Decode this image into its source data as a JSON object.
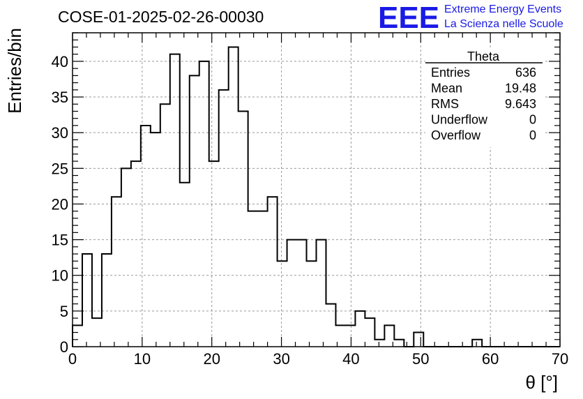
{
  "chart_data": {
    "type": "bar",
    "histogram": true,
    "title": "COSE-01-2025-02-26-00030",
    "xlabel": "θ [°]",
    "ylabel": "Entries/bin",
    "xlim": [
      0,
      70
    ],
    "ylim": [
      0,
      44
    ],
    "x_ticks": [
      0,
      10,
      20,
      30,
      40,
      50,
      60,
      70
    ],
    "y_ticks": [
      0,
      5,
      10,
      15,
      20,
      25,
      30,
      35,
      40
    ],
    "grid": true,
    "bin_width": 1.4,
    "bin_edges_start": 0,
    "values": [
      3,
      13,
      4,
      13,
      21,
      25,
      26,
      31,
      30,
      34,
      41,
      23,
      38,
      40,
      26,
      36,
      42,
      33,
      19,
      19,
      21,
      12,
      15,
      15,
      12,
      15,
      6,
      3,
      3,
      5,
      4,
      1,
      3,
      1,
      0,
      2,
      0,
      0,
      0,
      0,
      0,
      1,
      0,
      0,
      0,
      0,
      0,
      0,
      0,
      0
    ],
    "color": "#000000"
  },
  "logo": {
    "big": "EEE",
    "line1": "Extreme Energy Events",
    "line2": "La Scienza nelle Scuole",
    "color": "#1a1ae6"
  },
  "stats_box": {
    "title": "Theta",
    "rows": [
      {
        "label": "Entries",
        "value": "636"
      },
      {
        "label": "Mean",
        "value": "19.48"
      },
      {
        "label": "RMS",
        "value": "9.643"
      },
      {
        "label": "Underflow",
        "value": "0"
      },
      {
        "label": "Overflow",
        "value": "0"
      }
    ]
  }
}
